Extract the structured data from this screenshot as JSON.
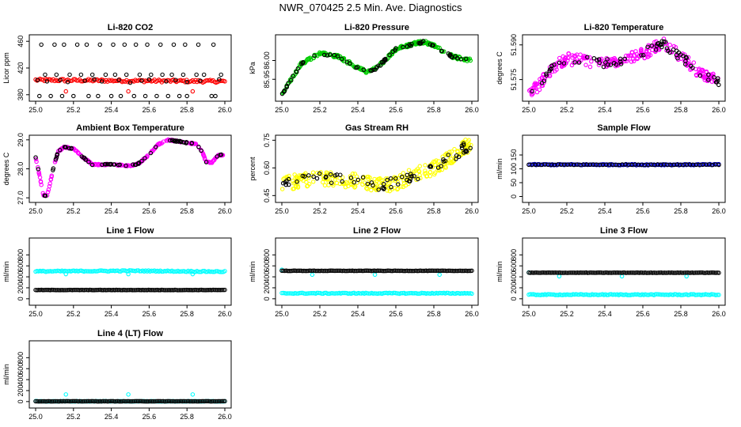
{
  "page": {
    "title": "NWR_070425  2.5 Min. Ave. Diagnostics"
  },
  "chart_data": [
    {
      "type": "scatter",
      "title": "Li-820 CO2",
      "ylabel": "Licor ppm",
      "xlim": [
        25.0,
        26.0
      ],
      "ylim": [
        375,
        465
      ],
      "xticks": [
        "25.0",
        "25.2",
        "25.4",
        "25.6",
        "25.8",
        "26.0"
      ],
      "yticks": [
        380,
        420,
        460
      ],
      "series": [
        {
          "color": "#ff0000",
          "kind": "band",
          "x": [
            25.0,
            25.5,
            26.0
          ],
          "y": [
            402,
            401,
            400
          ],
          "spread": 2
        },
        {
          "color": "#ff0000",
          "kind": "points",
          "x": [
            25.16,
            25.49,
            25.83
          ],
          "y": [
            385,
            385,
            385
          ]
        },
        {
          "color": "#000000",
          "kind": "points",
          "x": [
            25.02,
            25.08,
            25.14,
            25.2,
            25.28,
            25.33,
            25.4,
            25.45,
            25.52,
            25.58,
            25.64,
            25.7,
            25.76,
            25.8,
            25.93,
            25.95,
            25.05,
            25.11,
            25.18,
            25.24,
            25.3,
            25.37,
            25.42,
            25.48,
            25.55,
            25.61,
            25.67,
            25.72,
            25.78,
            25.85,
            25.89,
            25.98,
            25.01,
            25.06,
            25.13,
            25.17,
            25.26,
            25.31,
            25.35,
            25.44,
            25.5,
            25.56,
            25.6,
            25.69,
            25.74,
            25.8,
            25.87,
            25.97,
            25.03,
            25.1,
            25.15,
            25.22,
            25.27,
            25.34,
            25.41,
            25.47,
            25.53,
            25.59,
            25.66,
            25.73,
            25.79,
            25.86,
            25.94
          ],
          "y": [
            378,
            378,
            378,
            378,
            378,
            378,
            378,
            378,
            378,
            378,
            378,
            378,
            378,
            378,
            378,
            378,
            410,
            410,
            410,
            410,
            410,
            410,
            410,
            410,
            410,
            410,
            410,
            410,
            410,
            410,
            410,
            410,
            402,
            400,
            402,
            399,
            401,
            403,
            400,
            402,
            398,
            401,
            403,
            400,
            402,
            399,
            401,
            403,
            455,
            455,
            455,
            455,
            455,
            455,
            455,
            455,
            455,
            455,
            455,
            455,
            455,
            455,
            455
          ]
        }
      ]
    },
    {
      "type": "scatter",
      "title": "Li-820 Pressure",
      "ylabel": "kPa",
      "xlim": [
        25.0,
        26.0
      ],
      "ylim": [
        85.9,
        86.06
      ],
      "xticks": [
        "25.0",
        "25.2",
        "25.4",
        "25.6",
        "25.8",
        "26.0"
      ],
      "yticks": [
        "85.95",
        "86.00"
      ],
      "series": [
        {
          "color": "#00cc00",
          "kind": "curve",
          "noise": 0.004,
          "x": [
            25.0,
            25.1,
            25.2,
            25.3,
            25.4,
            25.45,
            25.5,
            25.6,
            25.7,
            25.75,
            25.8,
            25.9,
            26.0
          ],
          "y": [
            85.91,
            85.99,
            86.02,
            86.01,
            85.98,
            85.97,
            85.98,
            86.03,
            86.045,
            86.05,
            86.04,
            86.01,
            86.0
          ]
        },
        {
          "color": "#000000",
          "kind": "curve",
          "sparse": true,
          "noise": 0.003,
          "x": [
            25.0,
            25.1,
            25.2,
            25.3,
            25.4,
            25.45,
            25.5,
            25.6,
            25.7,
            25.75,
            25.8,
            25.9,
            26.0
          ],
          "y": [
            85.91,
            85.99,
            86.02,
            86.01,
            85.98,
            85.97,
            85.98,
            86.03,
            86.045,
            86.05,
            86.04,
            86.01,
            86.0
          ]
        }
      ]
    },
    {
      "type": "scatter",
      "title": "Li-820 Temperature",
      "ylabel": "degrees C",
      "xlim": [
        25.0,
        26.0
      ],
      "ylim": [
        51.567,
        51.593
      ],
      "xticks": [
        "25.0",
        "25.2",
        "25.4",
        "25.6",
        "25.8",
        "26.0"
      ],
      "yticks": [
        "51.575",
        "51.590"
      ],
      "series": [
        {
          "color": "#ff00ff",
          "kind": "curve",
          "noise": 0.0025,
          "x": [
            25.0,
            25.05,
            25.1,
            25.15,
            25.2,
            25.3,
            25.4,
            25.5,
            25.6,
            25.7,
            25.72,
            25.8,
            25.9,
            26.0
          ],
          "y": [
            51.57,
            51.572,
            51.578,
            51.582,
            51.584,
            51.583,
            51.582,
            51.584,
            51.586,
            51.591,
            51.59,
            51.585,
            51.578,
            51.574
          ]
        },
        {
          "color": "#000000",
          "kind": "curve",
          "sparse": true,
          "noise": 0.002,
          "x": [
            25.0,
            25.05,
            25.1,
            25.15,
            25.2,
            25.3,
            25.4,
            25.5,
            25.6,
            25.7,
            25.72,
            25.8,
            25.9,
            26.0
          ],
          "y": [
            51.57,
            51.572,
            51.578,
            51.582,
            51.584,
            51.583,
            51.582,
            51.584,
            51.586,
            51.591,
            51.59,
            51.585,
            51.578,
            51.574
          ]
        }
      ]
    },
    {
      "type": "scatter",
      "title": "Ambient Box Temperature",
      "ylabel": "degrees C",
      "xlim": [
        25.0,
        26.0
      ],
      "ylim": [
        26.95,
        29.05
      ],
      "xticks": [
        "25.0",
        "25.2",
        "25.4",
        "25.6",
        "25.8",
        "26.0"
      ],
      "yticks": [
        "27.0",
        "28.0",
        "29.0"
      ],
      "series": [
        {
          "color": "#ff00ff",
          "kind": "curve",
          "noise": 0.02,
          "x": [
            25.0,
            25.02,
            25.04,
            25.06,
            25.08,
            25.1,
            25.12,
            25.15,
            25.2,
            25.25,
            25.3,
            25.4,
            25.5,
            25.55,
            25.6,
            25.65,
            25.7,
            25.75,
            25.8,
            25.85,
            25.88,
            25.9,
            25.93,
            25.96,
            26.0
          ],
          "y": [
            28.4,
            27.8,
            27.1,
            27.05,
            27.6,
            28.2,
            28.6,
            28.75,
            28.7,
            28.4,
            28.15,
            28.15,
            28.1,
            28.2,
            28.5,
            28.85,
            29.0,
            28.95,
            28.9,
            28.85,
            28.6,
            28.25,
            28.2,
            28.45,
            28.5
          ]
        },
        {
          "color": "#000000",
          "kind": "curve",
          "sparse": true,
          "noise": 0.02,
          "x": [
            25.0,
            25.02,
            25.04,
            25.06,
            25.08,
            25.1,
            25.12,
            25.15,
            25.2,
            25.25,
            25.3,
            25.4,
            25.5,
            25.55,
            25.6,
            25.65,
            25.7,
            25.75,
            25.8,
            25.85,
            25.88,
            25.9,
            25.93,
            25.96,
            26.0
          ],
          "y": [
            28.4,
            27.8,
            27.1,
            27.05,
            27.6,
            28.2,
            28.6,
            28.75,
            28.7,
            28.4,
            28.15,
            28.15,
            28.1,
            28.2,
            28.5,
            28.85,
            29.0,
            28.95,
            28.9,
            28.85,
            28.6,
            28.25,
            28.2,
            28.45,
            28.5
          ]
        }
      ]
    },
    {
      "type": "scatter",
      "title": "Gas Stream RH",
      "ylabel": "percent",
      "xlim": [
        25.0,
        26.0
      ],
      "ylim": [
        0.43,
        0.76
      ],
      "xticks": [
        "25.0",
        "25.2",
        "25.4",
        "25.6",
        "25.8",
        "26.0"
      ],
      "yticks": [
        "0.45",
        "0.60",
        "0.75"
      ],
      "series": [
        {
          "color": "#ffff00",
          "kind": "curve",
          "noise": 0.04,
          "x": [
            25.0,
            25.2,
            25.4,
            25.5,
            25.6,
            25.7,
            25.8,
            25.9,
            26.0
          ],
          "y": [
            0.52,
            0.54,
            0.53,
            0.5,
            0.52,
            0.56,
            0.6,
            0.66,
            0.74
          ]
        },
        {
          "color": "#000000",
          "kind": "curve",
          "sparse": true,
          "noise": 0.03,
          "x": [
            25.0,
            25.2,
            25.4,
            25.5,
            25.6,
            25.7,
            25.8,
            25.9,
            26.0
          ],
          "y": [
            0.52,
            0.54,
            0.53,
            0.5,
            0.52,
            0.56,
            0.6,
            0.66,
            0.74
          ]
        }
      ]
    },
    {
      "type": "scatter",
      "title": "Sample Flow",
      "ylabel": "ml/min",
      "xlim": [
        25.0,
        26.0
      ],
      "ylim": [
        -10,
        210
      ],
      "xticks": [
        "25.0",
        "25.2",
        "25.4",
        "25.6",
        "25.8",
        "26.0"
      ],
      "yticks": [
        0,
        50,
        100,
        150
      ],
      "series": [
        {
          "color": "#0000cc",
          "kind": "band",
          "x": [
            25.0,
            26.0
          ],
          "y": [
            115,
            115
          ],
          "spread": 2
        },
        {
          "color": "#000000",
          "kind": "band",
          "sparse": true,
          "x": [
            25.0,
            26.0
          ],
          "y": [
            115,
            115
          ],
          "spread": 1
        }
      ]
    },
    {
      "type": "scatter",
      "title": "Line 1 Flow",
      "ylabel": "ml/min",
      "xlim": [
        25.0,
        26.0
      ],
      "ylim": [
        -60,
        1050
      ],
      "xticks": [
        "25.0",
        "25.2",
        "25.4",
        "25.6",
        "25.8",
        "26.0"
      ],
      "yticks": [
        0,
        200,
        400,
        600,
        800
      ],
      "series": [
        {
          "color": "#00ffff",
          "kind": "band",
          "x": [
            25.0,
            25.5,
            26.0
          ],
          "y": [
            500,
            510,
            495
          ],
          "spread": 10
        },
        {
          "color": "#00ffff",
          "kind": "points",
          "x": [
            25.16,
            25.49,
            25.83
          ],
          "y": [
            450,
            450,
            450
          ]
        },
        {
          "color": "#000000",
          "kind": "band",
          "x": [
            25.0,
            26.0
          ],
          "y": [
            160,
            160
          ],
          "spread": 3
        }
      ]
    },
    {
      "type": "scatter",
      "title": "Line 2 Flow",
      "ylabel": "ml/min",
      "xlim": [
        25.0,
        26.0
      ],
      "ylim": [
        -60,
        1050
      ],
      "xticks": [
        "25.0",
        "25.2",
        "25.4",
        "25.6",
        "25.8",
        "26.0"
      ],
      "yticks": [
        0,
        200,
        400,
        600,
        800
      ],
      "series": [
        {
          "color": "#00ffff",
          "kind": "band",
          "x": [
            25.0,
            26.0
          ],
          "y": [
            100,
            100
          ],
          "spread": 8
        },
        {
          "color": "#00ffff",
          "kind": "points",
          "x": [
            25.0,
            25.16,
            25.49,
            25.83
          ],
          "y": [
            530,
            440,
            440,
            440
          ]
        },
        {
          "color": "#000000",
          "kind": "band",
          "x": [
            25.0,
            26.0
          ],
          "y": [
            510,
            510
          ],
          "spread": 3
        }
      ]
    },
    {
      "type": "scatter",
      "title": "Line 3 Flow",
      "ylabel": "ml/min",
      "xlim": [
        25.0,
        26.0
      ],
      "ylim": [
        -60,
        1050
      ],
      "xticks": [
        "25.0",
        "25.2",
        "25.4",
        "25.6",
        "25.8",
        "26.0"
      ],
      "yticks": [
        0,
        200,
        400,
        600,
        800
      ],
      "series": [
        {
          "color": "#00ffff",
          "kind": "band",
          "x": [
            25.0,
            26.0
          ],
          "y": [
            75,
            75
          ],
          "spread": 8
        },
        {
          "color": "#00ffff",
          "kind": "points",
          "x": [
            25.0,
            25.16,
            25.49,
            25.83
          ],
          "y": [
            480,
            410,
            410,
            410
          ]
        },
        {
          "color": "#000000",
          "kind": "band",
          "x": [
            25.0,
            26.0
          ],
          "y": [
            475,
            475
          ],
          "spread": 3
        }
      ]
    },
    {
      "type": "scatter",
      "title": "Line 4 (LT) Flow",
      "ylabel": "ml/min",
      "xlim": [
        25.0,
        26.0
      ],
      "ylim": [
        -60,
        1050
      ],
      "xticks": [
        "25.0",
        "25.2",
        "25.4",
        "25.6",
        "25.8",
        "26.0"
      ],
      "yticks": [
        0,
        200,
        400,
        600,
        800
      ],
      "series": [
        {
          "color": "#00ffff",
          "kind": "band",
          "x": [
            25.0,
            26.0
          ],
          "y": [
            5,
            5
          ],
          "spread": 3
        },
        {
          "color": "#00ffff",
          "kind": "points",
          "x": [
            25.16,
            25.49,
            25.83
          ],
          "y": [
            130,
            130,
            130
          ]
        },
        {
          "color": "#000000",
          "kind": "band",
          "x": [
            25.0,
            26.0
          ],
          "y": [
            5,
            5
          ],
          "spread": 2
        }
      ]
    }
  ]
}
